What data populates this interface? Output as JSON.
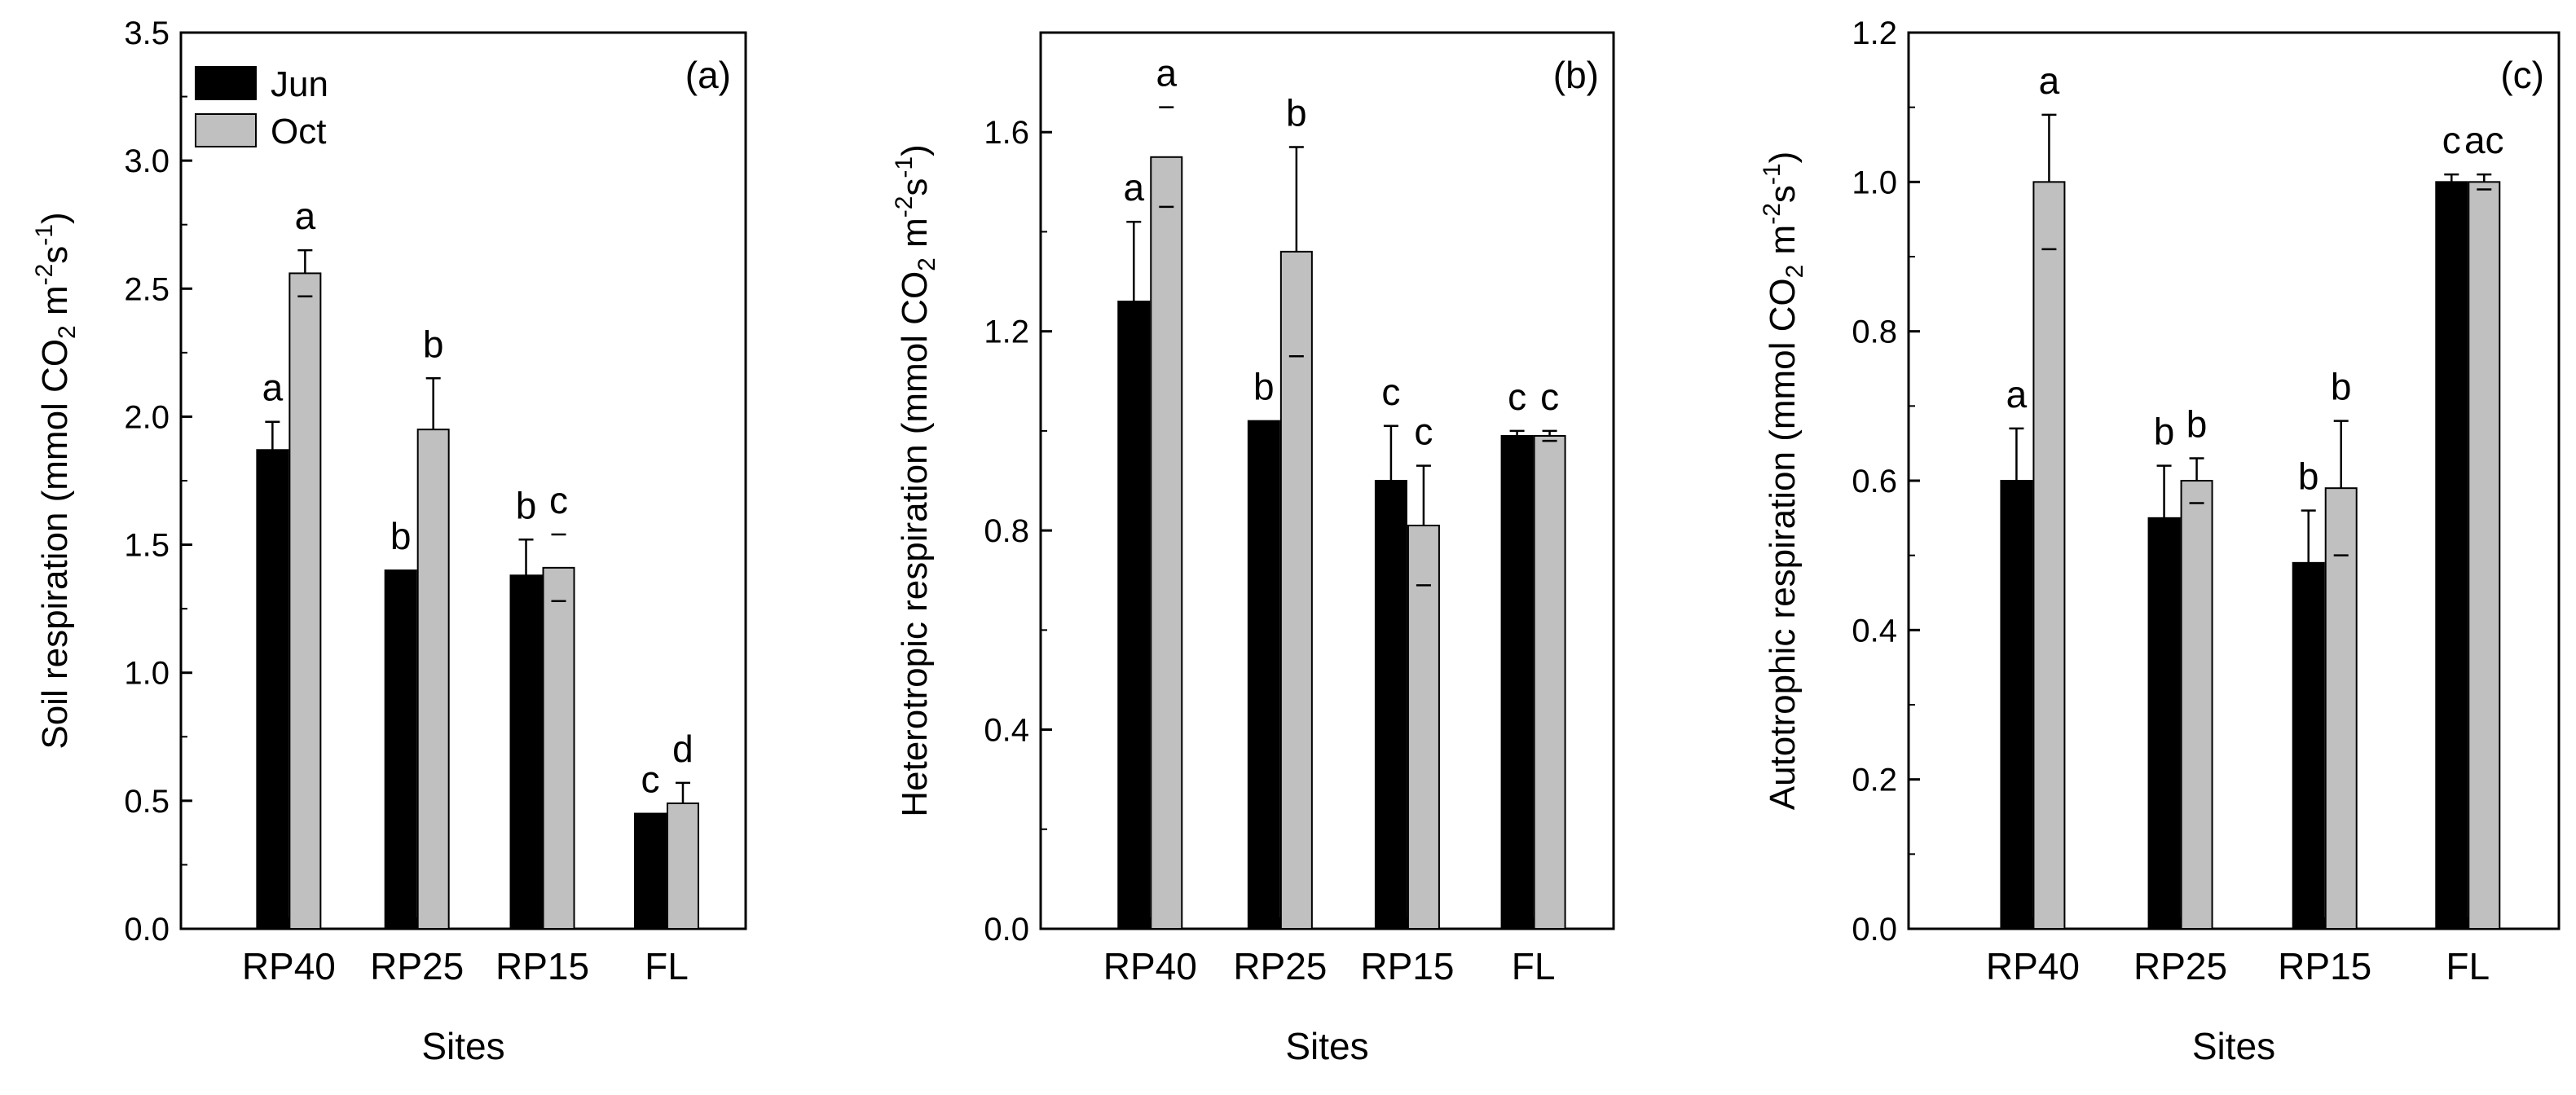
{
  "chart_data": [
    {
      "type": "bar",
      "panel_label": "(a)",
      "title": "",
      "xlabel": "Sites",
      "ylabel_main": "Soil respiration (mmol CO",
      "ylabel_sub": "2",
      "ylabel_mid": " m",
      "ylabel_sup1": "-2",
      "ylabel_mid2": "s",
      "ylabel_sup2": "-1",
      "ylabel_end": ")",
      "ylim": [
        0,
        3.5
      ],
      "yticks": [
        0,
        0.5,
        1.0,
        1.5,
        2.0,
        2.5,
        3.0,
        3.5
      ],
      "ytick_labels": [
        "0.0",
        "0.5",
        "1.0",
        "1.5",
        "2.0",
        "2.5",
        "3.0",
        "3.5"
      ],
      "categories": [
        "RP40",
        "RP25",
        "RP15",
        "FL"
      ],
      "legend": {
        "placement": "top-left",
        "entries": [
          "Jun",
          "Oct"
        ]
      },
      "series": [
        {
          "name": "Jun",
          "color": "#000000",
          "values": [
            1.87,
            1.4,
            1.38,
            0.45
          ],
          "errors": [
            0.11,
            0.0,
            0.14,
            0.0
          ],
          "error_dir": [
            1,
            1,
            1,
            1
          ],
          "letters": [
            "a",
            "b",
            "b",
            "c"
          ]
        },
        {
          "name": "Oct",
          "color": "#c0c0c0",
          "values": [
            2.56,
            1.95,
            1.41,
            0.49
          ],
          "errors": [
            0.09,
            0.2,
            0.13,
            0.08
          ],
          "error_dir": [
            0,
            1,
            -1,
            1
          ],
          "letters": [
            "a",
            "b",
            "c",
            "d"
          ]
        }
      ]
    },
    {
      "type": "bar",
      "panel_label": "(b)",
      "title": "",
      "xlabel": "Sites",
      "ylabel_main": "Heterotropic respiration (mmol CO",
      "ylabel_sub": "2",
      "ylabel_mid": " m",
      "ylabel_sup1": "-2",
      "ylabel_mid2": "s",
      "ylabel_sup2": "-1",
      "ylabel_end": ")",
      "ylim": [
        0,
        1.8
      ],
      "yticks": [
        0,
        0.4,
        0.8,
        1.2,
        1.6
      ],
      "ytick_labels": [
        "0.0",
        "0.4",
        "0.8",
        "1.2",
        "1.6"
      ],
      "categories": [
        "RP40",
        "RP25",
        "RP15",
        "FL"
      ],
      "series": [
        {
          "name": "Jun",
          "color": "#000000",
          "values": [
            1.26,
            1.02,
            0.9,
            0.99
          ],
          "errors": [
            0.16,
            0.0,
            0.11,
            0.01
          ],
          "error_dir": [
            1,
            1,
            1,
            1
          ],
          "letters": [
            "a",
            "b",
            "c",
            "c"
          ]
        },
        {
          "name": "Oct",
          "color": "#c0c0c0",
          "values": [
            1.55,
            1.36,
            0.81,
            0.99
          ],
          "errors": [
            0.1,
            0.21,
            0.12,
            0.01
          ],
          "error_dir": [
            -1,
            0,
            0,
            0
          ],
          "letters": [
            "a",
            "b",
            "c",
            "c"
          ]
        }
      ]
    },
    {
      "type": "bar",
      "panel_label": "(c)",
      "title": "",
      "xlabel": "Sites",
      "ylabel_main": "Autotrophic respiration (mmol CO",
      "ylabel_sub": "2",
      "ylabel_mid": " m",
      "ylabel_sup1": "-2",
      "ylabel_mid2": "s",
      "ylabel_sup2": "-1",
      "ylabel_end": ")",
      "ylim": [
        0,
        1.2
      ],
      "yticks": [
        0,
        0.2,
        0.4,
        0.6,
        0.8,
        1.0,
        1.2
      ],
      "ytick_labels": [
        "0.0",
        "0.2",
        "0.4",
        "0.6",
        "0.8",
        "1.0",
        "1.2"
      ],
      "categories": [
        "RP40",
        "RP25",
        "RP15",
        "FL"
      ],
      "series": [
        {
          "name": "Jun",
          "color": "#000000",
          "values": [
            0.6,
            0.55,
            0.49,
            1.0
          ],
          "errors": [
            0.07,
            0.07,
            0.07,
            0.01
          ],
          "error_dir": [
            1,
            1,
            1,
            1
          ],
          "letters": [
            "a",
            "b",
            "b",
            "c"
          ]
        },
        {
          "name": "Oct",
          "color": "#c0c0c0",
          "values": [
            1.0,
            0.6,
            0.59,
            1.0
          ],
          "errors": [
            0.09,
            0.03,
            0.09,
            0.01
          ],
          "error_dir": [
            0,
            0,
            0,
            0
          ],
          "letters": [
            "a",
            "b",
            "b",
            "ac"
          ]
        }
      ]
    }
  ]
}
